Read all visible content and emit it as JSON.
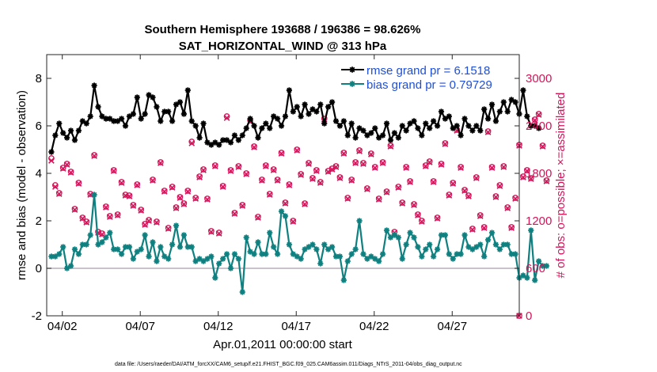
{
  "chart_data": {
    "type": "line",
    "title": "Southern Hemisphere 193688 / 196386 = 98.626%",
    "subtitle": "SAT_HORIZONTAL_WIND @ 313 hPa",
    "xlabel": "Apr.01,2011 00:00:00 start",
    "ylabel": "rmse and bias (model - observation)",
    "ylabel_right": "# of obs: o=possible; ×=assimilated",
    "footnote": "data file: /Users/raeder/DAI/ATM_forcXX/CAM6_setup/f.e21.FHIST_BGC.f09_025.CAM6assim.011/Diags_NTrS_2011-04/obs_diag_output.nc",
    "xlim": [
      0,
      30.3
    ],
    "ylim": [
      -2,
      9
    ],
    "ylim_right": [
      0,
      3300
    ],
    "x_ticks": [
      1,
      6,
      11,
      16,
      21,
      26
    ],
    "x_tick_labels": [
      "04/02",
      "04/07",
      "04/12",
      "04/17",
      "04/22",
      "04/27"
    ],
    "y_ticks": [
      -2,
      0,
      2,
      4,
      6,
      8
    ],
    "y_ticks_right": [
      0,
      600,
      1200,
      1800,
      2400,
      3000
    ],
    "colors": {
      "rmse": "#000000",
      "bias": "#0f8080",
      "obs": "#d4145a",
      "zero": "#b8aeb8",
      "legend_text": "#1f4fd6"
    },
    "series": [
      {
        "name": "rmse grand pr = 6.1518",
        "color": "#000000",
        "marker": "star",
        "values": [
          4.9,
          5.6,
          6.1,
          5.7,
          5.5,
          5.8,
          5.4,
          5.8,
          6.2,
          6.1,
          6.4,
          7.7,
          6.8,
          6.4,
          6.3,
          6.3,
          6.2,
          6.2,
          6.3,
          6.0,
          6.4,
          6.5,
          7.2,
          6.3,
          6.5,
          7.3,
          7.2,
          6.8,
          6.2,
          6.6,
          6.6,
          6.2,
          6.9,
          7.0,
          6.5,
          7.5,
          6.2,
          6.0,
          5.5,
          6.1,
          5.3,
          5.2,
          5.3,
          5.2,
          5.4,
          5.4,
          5.3,
          5.6,
          5.4,
          5.6,
          5.9,
          6.3,
          6.0,
          5.5,
          5.9,
          6.1,
          5.9,
          6.4,
          6.3,
          6.0,
          6.4,
          7.5,
          6.6,
          6.8,
          6.4,
          6.9,
          6.5,
          6.7,
          6.6,
          6.9,
          6.1,
          6.8,
          7.0,
          6.2,
          6.0,
          6.2,
          5.6,
          6.1,
          5.5,
          5.9,
          5.8,
          5.6,
          5.7,
          5.9,
          5.5,
          5.6,
          6.1,
          5.4,
          5.7,
          5.5,
          6.0,
          5.8,
          6.1,
          6.2,
          5.9,
          5.6,
          6.1,
          5.9,
          6.2,
          6.0,
          6.6,
          6.3,
          6.4,
          5.9,
          6.0,
          5.6,
          6.3,
          6.0,
          5.8,
          6.0,
          5.8,
          6.7,
          6.3,
          6.9,
          6.2,
          6.6,
          7.0,
          6.6,
          7.1,
          7.0,
          6.5,
          7.5,
          6.4,
          6.0,
          6.0,
          5.9
        ]
      },
      {
        "name": "bias grand pr = 0.79729",
        "color": "#0f8080",
        "marker": "star",
        "values": [
          0.5,
          0.5,
          0.6,
          0.9,
          0.0,
          0.1,
          0.8,
          0.6,
          1.0,
          1.0,
          1.4,
          3.1,
          1.0,
          1.1,
          1.3,
          1.5,
          0.8,
          0.8,
          0.6,
          0.9,
          0.9,
          0.4,
          0.7,
          0.8,
          1.4,
          0.5,
          1.1,
          0.3,
          0.9,
          0.5,
          0.4,
          1.0,
          1.8,
          0.9,
          1.4,
          0.9,
          0.9,
          0.3,
          0.4,
          0.3,
          0.4,
          0.5,
          -0.4,
          0.2,
          0.4,
          0.6,
          0.0,
          0.6,
          0.4,
          -1.0,
          1.3,
          0.7,
          0.6,
          1.1,
          0.6,
          0.6,
          1.5,
          0.9,
          0.6,
          2.4,
          2.2,
          1.0,
          0.6,
          0.5,
          0.4,
          0.8,
          0.9,
          1.0,
          0.8,
          0.2,
          1.0,
          0.8,
          0.9,
          0.5,
          0.5,
          -0.5,
          0.3,
          0.6,
          0.8,
          2.0,
          0.6,
          0.4,
          0.5,
          0.4,
          0.3,
          0.6,
          1.6,
          1.3,
          1.4,
          1.3,
          0.4,
          1.0,
          1.5,
          1.3,
          0.9,
          0.5,
          0.8,
          1.0,
          0.5,
          0.8,
          1.4,
          1.4,
          0.6,
          0.4,
          0.6,
          0.6,
          1.4,
          0.9,
          0.8,
          0.9,
          1.0,
          0.5,
          1.2,
          1.5,
          1.0,
          0.8,
          1.0,
          1.0,
          0.6,
          0.6,
          -0.4,
          -0.3,
          -0.4,
          1.6,
          -0.5,
          0.3,
          0.1,
          0.1
        ]
      },
      {
        "name": "# of obs possible (o)",
        "color": "#d4145a",
        "marker": "circle",
        "values": [
          1990,
          1650,
          1550,
          1870,
          1920,
          1820,
          1350,
          1680,
          1240,
          1190,
          1540,
          2030,
          1060,
          1040,
          1380,
          1260,
          1840,
          1280,
          1690,
          1530,
          1520,
          1400,
          1660,
          1340,
          1160,
          1210,
          1720,
          1190,
          1940,
          1580,
          1110,
          1630,
          1370,
          1500,
          1420,
          1580,
          2200,
          1490,
          1760,
          1850,
          1480,
          1070,
          1900,
          1050,
          1640,
          2520,
          1840,
          1300,
          1890,
          1400,
          1800,
          2470,
          2140,
          1250,
          1720,
          1900,
          1540,
          1850,
          1720,
          2060,
          1430,
          1660,
          1200,
          2100,
          1790,
          1420,
          1930,
          1740,
          1840,
          1690,
          2490,
          1830,
          1860,
          1890,
          1750,
          2060,
          1490,
          1720,
          1940,
          2090,
          1930,
          1610,
          2050,
          1880,
          1480,
          1940,
          1570,
          2150,
          1060,
          1630,
          1430,
          1880,
          1700,
          1410,
          1280,
          1200,
          1900,
          1950,
          1700,
          1240,
          1920,
          2180,
          1530,
          1680,
          2350,
          1880,
          1590,
          1520,
          1100,
          1750,
          1270,
          1120,
          2330,
          1880,
          1510,
          1650,
          1890,
          1370,
          1120,
          1490,
          2160,
          1760,
          1840,
          1740,
          2480,
          2550,
          2150,
          1710
        ]
      },
      {
        "name": "# of obs assimilated (×)",
        "color": "#d4145a",
        "marker": "x",
        "values": [
          1960,
          1630,
          1540,
          1860,
          1910,
          1810,
          1340,
          1670,
          1230,
          1180,
          1530,
          2020,
          1050,
          1030,
          1370,
          1250,
          1830,
          1270,
          1680,
          1520,
          1510,
          1390,
          1650,
          1330,
          1150,
          1200,
          1710,
          1180,
          1930,
          1570,
          1100,
          1620,
          1360,
          1490,
          1410,
          1570,
          2180,
          1480,
          1750,
          1840,
          1470,
          1060,
          1890,
          1040,
          1630,
          2500,
          1830,
          1290,
          1880,
          1390,
          1790,
          2450,
          2130,
          1240,
          1710,
          1890,
          1530,
          1840,
          1710,
          2050,
          1420,
          1650,
          1190,
          2090,
          1780,
          1410,
          1920,
          1730,
          1830,
          1680,
          2480,
          1820,
          1850,
          1880,
          1740,
          2050,
          1480,
          1710,
          1930,
          2080,
          1920,
          1600,
          2040,
          1870,
          1470,
          1930,
          1560,
          2140,
          1050,
          1620,
          1420,
          1870,
          1690,
          1400,
          1270,
          1190,
          1890,
          1940,
          1690,
          1230,
          1910,
          2170,
          1520,
          1670,
          2340,
          1870,
          1580,
          1510,
          1090,
          1740,
          1260,
          1110,
          2320,
          1870,
          1500,
          1640,
          1880,
          1360,
          1110,
          1480,
          2150,
          1750,
          1830,
          1730,
          2470,
          2540,
          2140,
          1700
        ]
      }
    ],
    "legend_position": "top-right"
  }
}
